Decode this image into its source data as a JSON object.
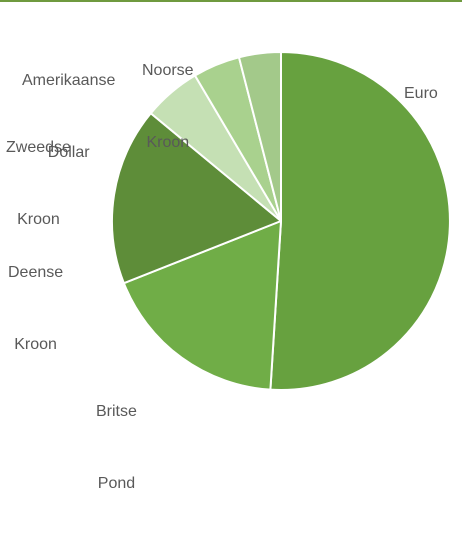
{
  "chart_data": {
    "type": "pie",
    "categories": [
      "Euro",
      "Britse Pond",
      "Deense Kroon",
      "Zweedse Kroon",
      "Amerikaanse Dollar",
      "Noorse Kroon"
    ],
    "slices": [
      {
        "label": "Euro",
        "label_lines": [
          "Euro"
        ],
        "value": 51.0,
        "color": "#67a13f"
      },
      {
        "label": "Britse Pond",
        "label_lines": [
          "Britse",
          "Pond"
        ],
        "value": 18.0,
        "color": "#70ad47"
      },
      {
        "label": "Deense Kroon",
        "label_lines": [
          "Deense",
          "Kroon"
        ],
        "value": 17.0,
        "color": "#5e8d39"
      },
      {
        "label": "Zweedse Kroon",
        "label_lines": [
          "Zweedse",
          "Kroon"
        ],
        "value": 5.5,
        "color": "#c5e0b4"
      },
      {
        "label": "Amerikaanse Dollar",
        "label_lines": [
          "Amerikaanse",
          "Dollar"
        ],
        "value": 4.5,
        "color": "#a9d18e"
      },
      {
        "label": "Noorse Kroon",
        "label_lines": [
          "Noorse",
          "Kroon"
        ],
        "value": 4.0,
        "color": "#a3c98a"
      }
    ],
    "start": "12 o'clock",
    "direction": "clockwise",
    "legend": "none",
    "title": ""
  }
}
